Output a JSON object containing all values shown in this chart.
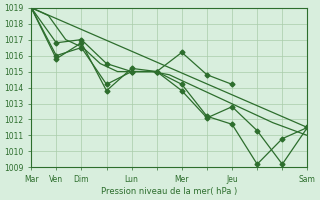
{
  "background_color": "#d8eedd",
  "grid_color": "#aaccaa",
  "line_color": "#2d6e2d",
  "marker_color": "#2d6e2d",
  "xlabel": "Pression niveau de la mer( hPa )",
  "ylim": [
    1009,
    1019
  ],
  "yticks": [
    1009,
    1010,
    1011,
    1012,
    1013,
    1014,
    1015,
    1016,
    1017,
    1018,
    1019
  ],
  "xtick_labels": [
    "Mar",
    "Ven",
    "Dim",
    "",
    "Lun",
    "",
    "Mer",
    "",
    "Jeu",
    "",
    "",
    "Sam"
  ],
  "xtick_positions": [
    0,
    1,
    2,
    3,
    4,
    5,
    6,
    7,
    8,
    9,
    10,
    11
  ],
  "series1": [
    1019,
    1018.5,
    1017,
    1016.5,
    1015.5,
    1015.0,
    1015.0,
    1015.0,
    1014.8,
    1014.3,
    1013.8,
    1013.3,
    1012.8,
    1012.3,
    1011.8,
    1011.4,
    1011.0
  ],
  "series2_x": [
    0,
    1,
    2,
    3,
    4,
    5,
    6,
    7,
    8
  ],
  "series2_y": [
    1019,
    1016.8,
    1017.0,
    1015.5,
    1015.0,
    1015.0,
    1016.2,
    1014.8,
    1014.2
  ],
  "series3_x": [
    0,
    1,
    2,
    3,
    4,
    5,
    6,
    7,
    8,
    9,
    10,
    11
  ],
  "series3_y": [
    1019,
    1015.8,
    1016.8,
    1013.8,
    1015.2,
    1015.0,
    1014.2,
    1012.2,
    1011.7,
    1009.2,
    1010.8,
    1011.5
  ],
  "series4_x": [
    0,
    1,
    2,
    3,
    4,
    5,
    6,
    7,
    8,
    9,
    10,
    11
  ],
  "series4_y": [
    1019,
    1016.0,
    1016.5,
    1014.2,
    1015.0,
    1015.0,
    1013.8,
    1012.1,
    1012.8,
    1011.3,
    1009.2,
    1011.5
  ],
  "trend_x": [
    0,
    11
  ],
  "trend_y": [
    1019,
    1011.5
  ]
}
